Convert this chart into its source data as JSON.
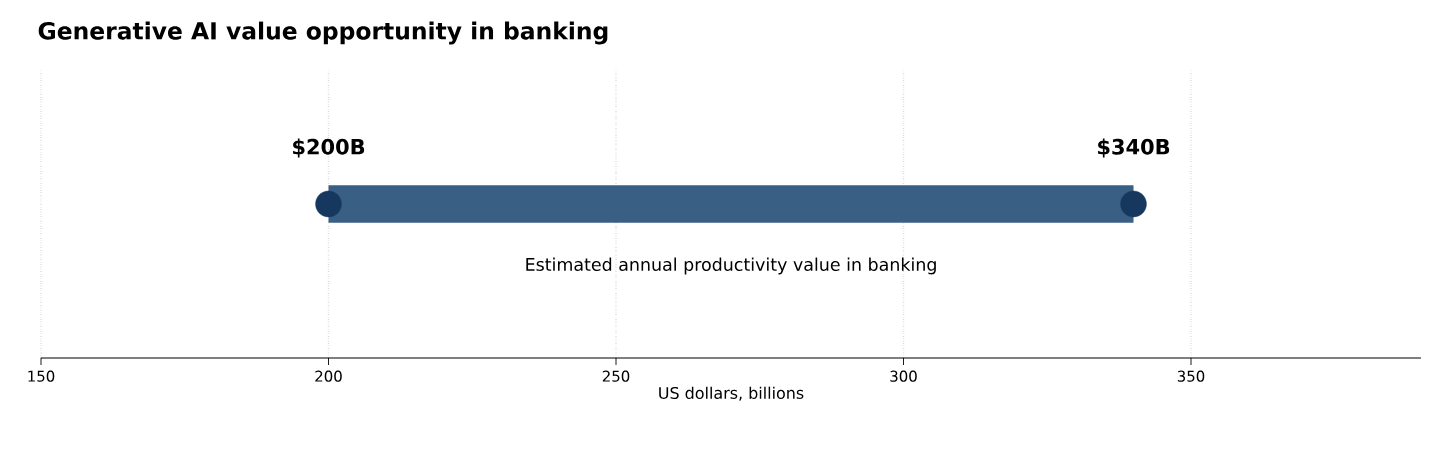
{
  "chart_data": {
    "type": "bar",
    "orientation": "horizontal",
    "title": "Generative AI value opportunity in banking",
    "xlabel": "US dollars, billions",
    "categories": [
      null
    ],
    "series": [
      {
        "color": "#3a5f85",
        "base": [
          200
        ],
        "values": [
          140
        ]
      },
      {
        "type": "scatter",
        "color": "#16385f",
        "marker": "circle",
        "values": [
          200
        ],
        "value_labels": [
          "$200B"
        ]
      },
      {
        "type": "scatter",
        "color": "#16385f",
        "marker": "circle",
        "values": [
          340
        ],
        "value_labels": [
          "$340B"
        ]
      }
    ],
    "xlim": [
      150,
      390
    ],
    "xticks": [
      150,
      200,
      250,
      300,
      350
    ],
    "grid": "x",
    "annotations": [
      "Estimated annual productivity value in banking"
    ]
  }
}
